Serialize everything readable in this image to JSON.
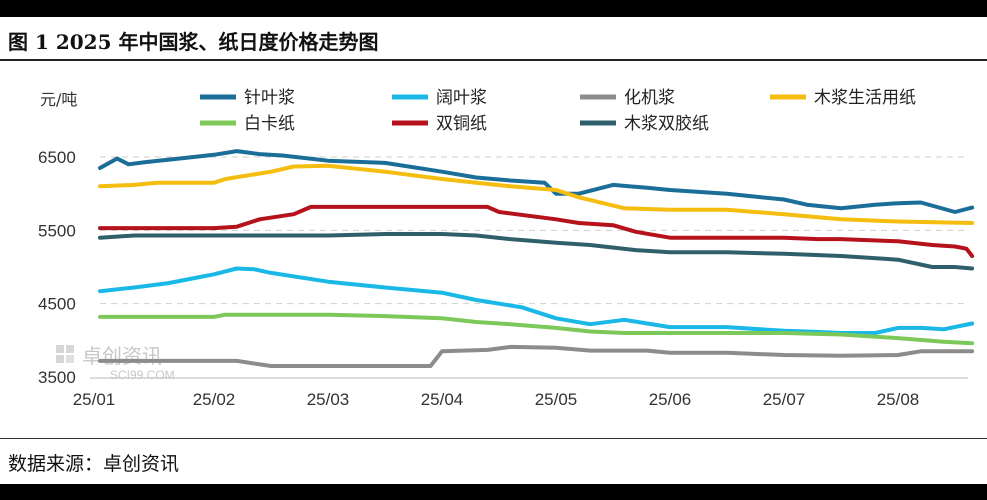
{
  "header": {
    "title": "图 1 2025 年中国浆、纸日度价格走势图"
  },
  "footer": {
    "source": "数据来源：卓创资讯"
  },
  "watermark": {
    "name": "卓创资讯",
    "site": "SCI99.COM"
  },
  "colors": {
    "针叶浆": "#1b6e98",
    "阔叶浆": "#19b8e6",
    "化机浆": "#8c8c8c",
    "木浆生活用纸": "#f5bd0f",
    "白卡纸": "#7cc95a",
    "双铜纸": "#b5121b",
    "木浆双胶纸": "#2f5f6b"
  },
  "chart_data": {
    "type": "line",
    "unit_label": "元/吨",
    "y_ticks": [
      3500,
      4500,
      5500,
      6500
    ],
    "ylim": [
      3500,
      6800
    ],
    "x_tick_labels": [
      "25/01",
      "25/02",
      "25/03",
      "25/04",
      "25/05",
      "25/06",
      "25/07",
      "25/08"
    ],
    "xlim": [
      0,
      7.65
    ],
    "grid": "dashed horizontal",
    "legend": "top",
    "series": [
      {
        "name": "针叶浆",
        "x": [
          0,
          0.15,
          0.25,
          0.4,
          0.7,
          1.0,
          1.2,
          1.4,
          1.6,
          2.0,
          2.5,
          3.0,
          3.3,
          3.6,
          3.9,
          4.0,
          4.2,
          4.5,
          4.8,
          5.0,
          5.5,
          5.8,
          6.0,
          6.2,
          6.5,
          6.8,
          7.0,
          7.2,
          7.5,
          7.65
        ],
        "y": [
          6350,
          6480,
          6400,
          6430,
          6480,
          6530,
          6580,
          6540,
          6520,
          6450,
          6420,
          6300,
          6220,
          6180,
          6150,
          6000,
          6000,
          6120,
          6080,
          6050,
          6000,
          5950,
          5920,
          5850,
          5800,
          5850,
          5870,
          5880,
          5750,
          5810
        ]
      },
      {
        "name": "阔叶浆",
        "x": [
          0,
          0.3,
          0.6,
          0.9,
          1.0,
          1.2,
          1.35,
          1.5,
          2.0,
          2.5,
          3.0,
          3.3,
          3.7,
          4.0,
          4.3,
          4.6,
          4.8,
          5.0,
          5.5,
          6.0,
          6.2,
          6.5,
          6.8,
          7.0,
          7.2,
          7.4,
          7.65
        ],
        "y": [
          4670,
          4720,
          4780,
          4870,
          4900,
          4980,
          4970,
          4920,
          4800,
          4720,
          4650,
          4550,
          4450,
          4300,
          4220,
          4280,
          4230,
          4180,
          4180,
          4130,
          4120,
          4100,
          4100,
          4170,
          4170,
          4150,
          4230
        ]
      },
      {
        "name": "化机浆",
        "x": [
          0,
          0.5,
          1.0,
          1.2,
          1.5,
          2.0,
          2.5,
          2.9,
          3.0,
          3.4,
          3.6,
          4.0,
          4.3,
          4.8,
          5.0,
          5.5,
          6.0,
          6.5,
          7.0,
          7.2,
          7.65
        ],
        "y": [
          3720,
          3720,
          3720,
          3720,
          3650,
          3650,
          3650,
          3650,
          3850,
          3870,
          3910,
          3900,
          3860,
          3860,
          3830,
          3830,
          3800,
          3790,
          3800,
          3850,
          3850
        ]
      },
      {
        "name": "木浆生活用纸",
        "x": [
          0,
          0.3,
          0.5,
          1.0,
          1.1,
          1.5,
          1.7,
          2.0,
          2.5,
          3.0,
          3.3,
          3.6,
          4.0,
          4.2,
          4.6,
          5.0,
          5.5,
          6.0,
          6.5,
          7.0,
          7.65
        ],
        "y": [
          6100,
          6120,
          6150,
          6150,
          6200,
          6300,
          6370,
          6380,
          6300,
          6200,
          6150,
          6100,
          6050,
          5950,
          5800,
          5780,
          5780,
          5720,
          5650,
          5620,
          5600
        ]
      },
      {
        "name": "白卡纸",
        "x": [
          0,
          0.5,
          1.0,
          1.1,
          1.5,
          2.0,
          2.5,
          3.0,
          3.3,
          3.6,
          4.0,
          4.3,
          4.6,
          5.0,
          5.5,
          6.0,
          6.5,
          7.0,
          7.4,
          7.65
        ],
        "y": [
          4320,
          4320,
          4320,
          4350,
          4350,
          4350,
          4330,
          4300,
          4250,
          4220,
          4170,
          4120,
          4100,
          4100,
          4100,
          4100,
          4080,
          4030,
          3980,
          3960
        ]
      },
      {
        "name": "双铜纸",
        "x": [
          0,
          0.5,
          1.0,
          1.2,
          1.4,
          1.7,
          1.85,
          2.0,
          2.5,
          3.0,
          3.4,
          3.5,
          4.0,
          4.2,
          4.5,
          4.7,
          5.0,
          5.5,
          6.0,
          6.3,
          6.5,
          7.0,
          7.3,
          7.5,
          7.6,
          7.65
        ],
        "y": [
          5530,
          5530,
          5530,
          5550,
          5650,
          5720,
          5820,
          5820,
          5820,
          5820,
          5820,
          5750,
          5650,
          5600,
          5570,
          5480,
          5400,
          5400,
          5400,
          5380,
          5380,
          5350,
          5300,
          5280,
          5250,
          5150
        ]
      },
      {
        "name": "木浆双胶纸",
        "x": [
          0,
          0.3,
          0.5,
          1.0,
          1.5,
          2.0,
          2.5,
          3.0,
          3.3,
          3.6,
          4.0,
          4.3,
          4.7,
          5.0,
          5.5,
          6.0,
          6.5,
          7.0,
          7.3,
          7.5,
          7.65
        ],
        "y": [
          5400,
          5430,
          5430,
          5430,
          5430,
          5430,
          5450,
          5450,
          5430,
          5380,
          5330,
          5300,
          5230,
          5200,
          5200,
          5180,
          5150,
          5100,
          5000,
          5000,
          4980
        ]
      }
    ]
  }
}
